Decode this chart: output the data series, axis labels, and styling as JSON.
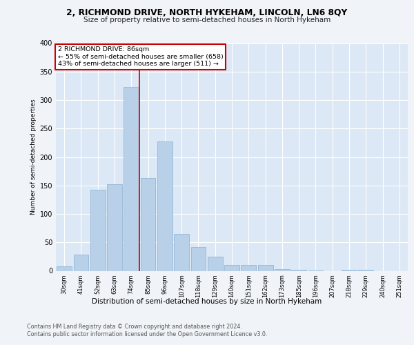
{
  "title1": "2, RICHMOND DRIVE, NORTH HYKEHAM, LINCOLN, LN6 8QY",
  "title2": "Size of property relative to semi-detached houses in North Hykeham",
  "xlabel": "Distribution of semi-detached houses by size in North Hykeham",
  "ylabel": "Number of semi-detached properties",
  "categories": [
    "30sqm",
    "41sqm",
    "52sqm",
    "63sqm",
    "74sqm",
    "85sqm",
    "96sqm",
    "107sqm",
    "118sqm",
    "129sqm",
    "140sqm",
    "151sqm",
    "162sqm",
    "173sqm",
    "185sqm",
    "196sqm",
    "207sqm",
    "218sqm",
    "229sqm",
    "240sqm",
    "251sqm"
  ],
  "values": [
    8,
    28,
    143,
    152,
    323,
    163,
    227,
    65,
    42,
    25,
    10,
    10,
    10,
    3,
    2,
    1,
    0,
    2,
    2,
    0,
    0
  ],
  "bar_color": "#b8d0e8",
  "bar_edge_color": "#8aafd0",
  "highlight_color": "#cc0000",
  "annotation_text": "2 RICHMOND DRIVE: 86sqm\n← 55% of semi-detached houses are smaller (658)\n43% of semi-detached houses are larger (511) →",
  "ylim_max": 400,
  "yticks": [
    0,
    50,
    100,
    150,
    200,
    250,
    300,
    350,
    400
  ],
  "footer1": "Contains HM Land Registry data © Crown copyright and database right 2024.",
  "footer2": "Contains public sector information licensed under the Open Government Licence v3.0.",
  "bg_color": "#dce8f5",
  "fig_bg_color": "#f0f4f8",
  "vline_pos": 4.5
}
